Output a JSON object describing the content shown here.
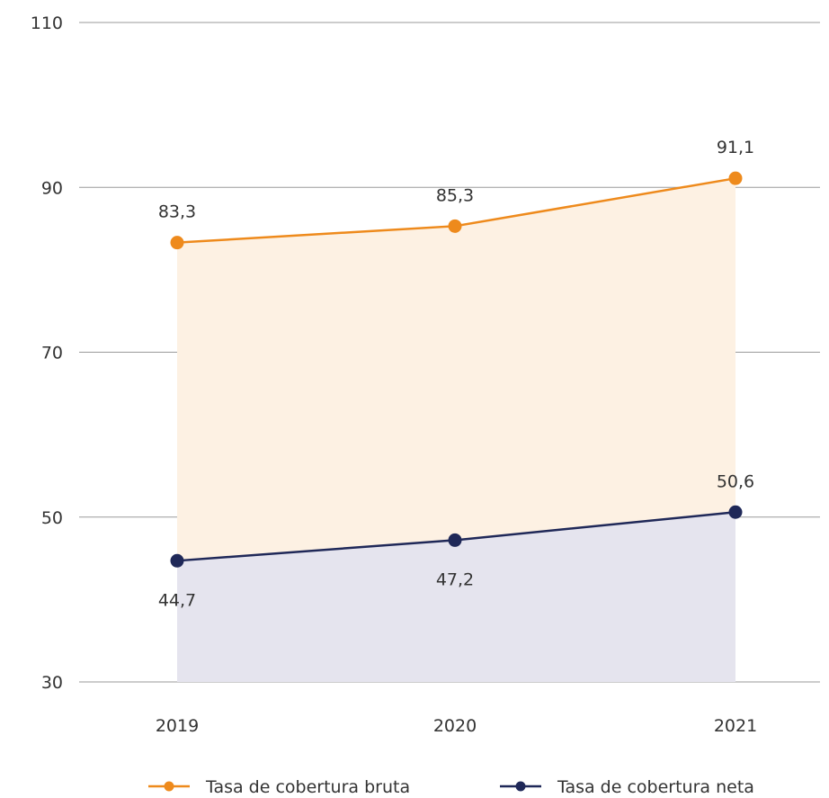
{
  "chart_data": {
    "type": "area",
    "categories": [
      "2019",
      "2020",
      "2021"
    ],
    "series": [
      {
        "name": "Tasa de cobertura bruta",
        "values": [
          83.3,
          85.3,
          91.1
        ],
        "labels": [
          "83,3",
          "85,3",
          "91,1"
        ],
        "color": "#ee8a1c",
        "fill": "#fdf1e3"
      },
      {
        "name": "Tasa de cobertura neta",
        "values": [
          44.7,
          47.2,
          50.6
        ],
        "labels": [
          "44,7",
          "47,2",
          "50,6"
        ],
        "color": "#1f2858",
        "fill": "#e5e4ee"
      }
    ],
    "ylim": [
      30,
      110
    ],
    "yticks": [
      "30",
      "50",
      "70",
      "90",
      "110"
    ],
    "grid": true,
    "legend_position": "bottom"
  }
}
